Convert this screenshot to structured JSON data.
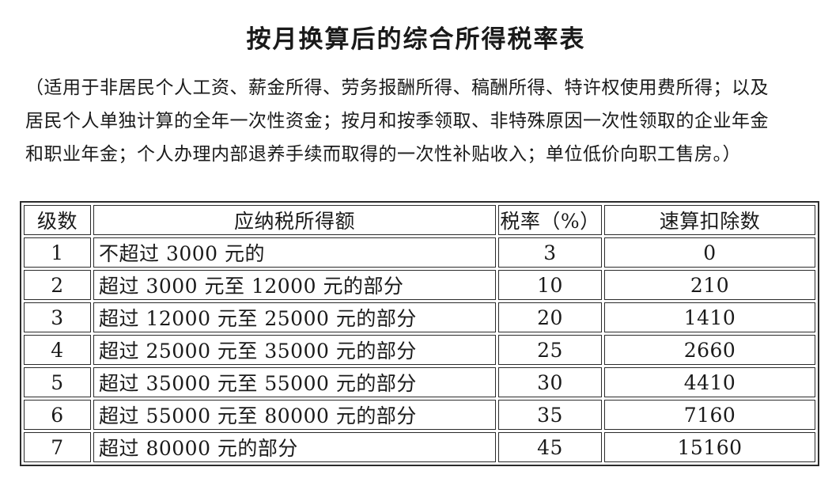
{
  "page": {
    "title": "按月换算后的综合所得税率表"
  },
  "intro": {
    "lines": [
      "（适用于非居民个人工资、薪金所得、劳务报酬所得、稿酬所得、特许权使用费所得；以及",
      "居民个人单独计算的全年一次性资金；按月和按季领取、非特殊原因一次性领取的企业年金",
      "和职业年金；个人办理内部退养手续而取得的一次性补贴收入；单位低价向职工售房。）"
    ]
  },
  "table": {
    "headers": {
      "level": "级数",
      "income": "应纳税所得额",
      "rate": "税率（%）",
      "deduction": "速算扣除数"
    },
    "rows": [
      {
        "level": "1",
        "income": "不超过 3000 元的",
        "rate": "3",
        "deduction": "0"
      },
      {
        "level": "2",
        "income": "超过 3000 元至 12000 元的部分",
        "rate": "10",
        "deduction": "210"
      },
      {
        "level": "3",
        "income": "超过 12000 元至 25000 元的部分",
        "rate": "20",
        "deduction": "1410"
      },
      {
        "level": "4",
        "income": "超过 25000 元至 35000 元的部分",
        "rate": "25",
        "deduction": "2660"
      },
      {
        "level": "5",
        "income": "超过 35000 元至 55000 元的部分",
        "rate": "30",
        "deduction": "4410"
      },
      {
        "level": "6",
        "income": "超过 55000 元至 80000 元的部分",
        "rate": "35",
        "deduction": "7160"
      },
      {
        "level": "7",
        "income": "超过 80000 元的部分",
        "rate": "45",
        "deduction": "15160"
      }
    ]
  },
  "colors": {
    "text": "#1a1a1a",
    "border": "#2b2b2b",
    "background": "#ffffff"
  }
}
